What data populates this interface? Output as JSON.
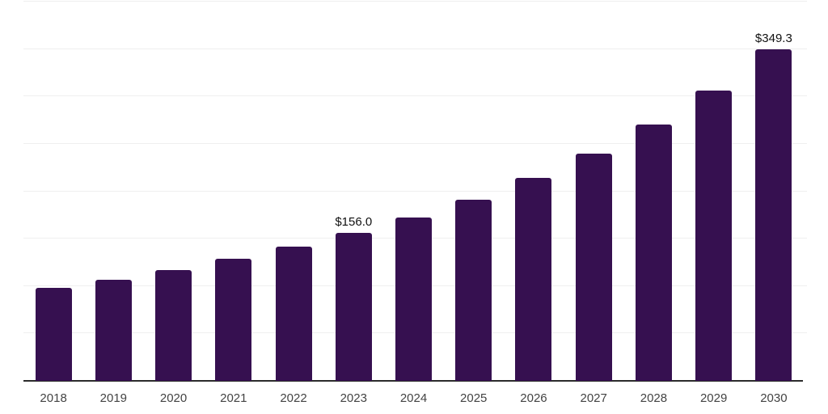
{
  "chart_data": {
    "type": "bar",
    "title": "",
    "xlabel": "",
    "ylabel": "",
    "categories": [
      "2018",
      "2019",
      "2020",
      "2021",
      "2022",
      "2023",
      "2024",
      "2025",
      "2026",
      "2027",
      "2028",
      "2029",
      "2030"
    ],
    "values": [
      97.9,
      106.2,
      117.2,
      129.1,
      141.6,
      156.0,
      172.2,
      190.8,
      213.8,
      239.3,
      270.8,
      306.1,
      349.3
    ],
    "data_labels": [
      "",
      "",
      "",
      "",
      "",
      "$156.0",
      "",
      "",
      "",
      "",
      "",
      "",
      "$349.3"
    ],
    "ylim": [
      0,
      400
    ],
    "ytick_step": 50,
    "yticks": [
      0,
      50,
      100,
      150,
      200,
      250,
      300,
      350,
      400
    ],
    "y_axis_labels_visible": false,
    "grid": true,
    "legend": false,
    "colors": {
      "bar": "#361050",
      "axis_line": "#2b2b2b",
      "gridline": "#efefef",
      "data_label_text": "#111111",
      "tick_label_text": "#434343",
      "background": "#ffffff"
    }
  }
}
